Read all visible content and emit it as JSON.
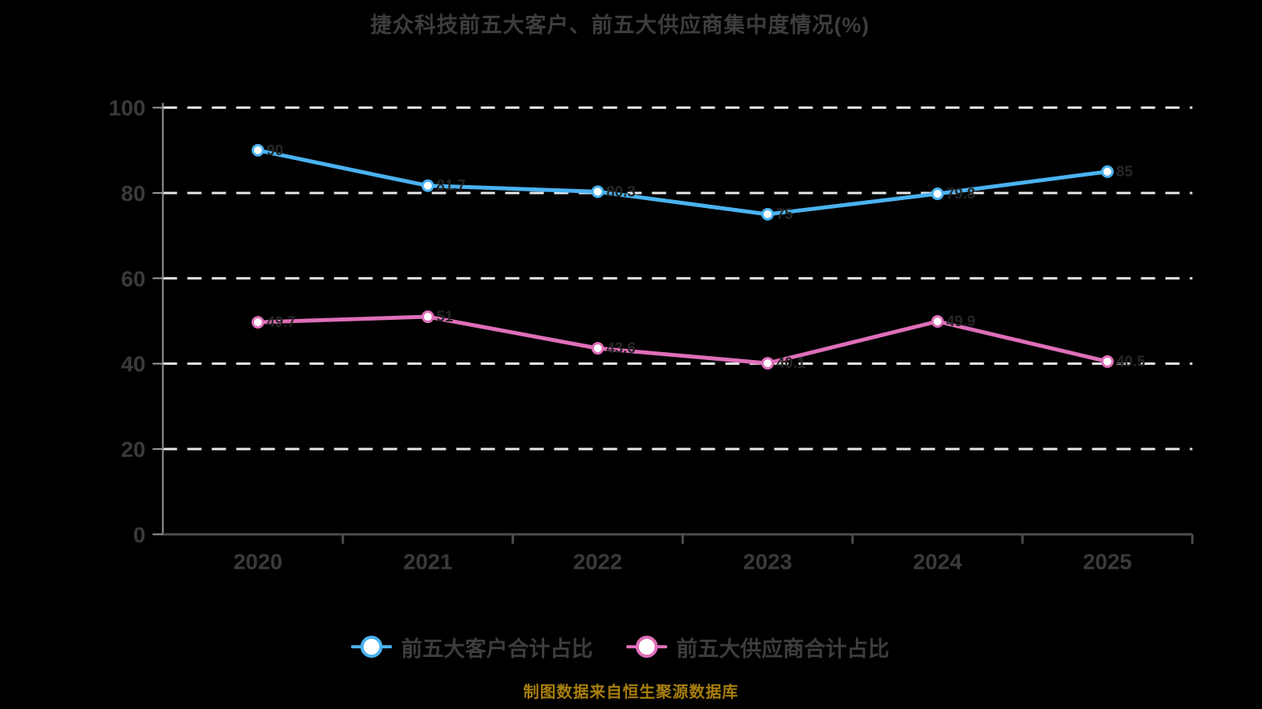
{
  "title": "捷众科技前五大客户、前五大供应商集中度情况(%)",
  "footer_note": "制图数据来自恒生聚源数据库",
  "chart_data": {
    "type": "line",
    "title": "捷众科技前五大客户、前五大供应商集中度情况(%)",
    "categories": [
      "2020",
      "2021",
      "2022",
      "2023",
      "2024",
      "2025"
    ],
    "series": [
      {
        "name": "前五大客户合计占比",
        "color": "#4ab2f0",
        "values": [
          90.0,
          81.7,
          80.3,
          75.0,
          79.8,
          85.0
        ]
      },
      {
        "name": "前五大供应商合计占比",
        "color": "#df6eb9",
        "values": [
          49.7,
          51.0,
          43.6,
          40.1,
          49.9,
          40.5
        ]
      }
    ],
    "xlabel": "",
    "ylabel": "",
    "ylim": [
      0,
      100
    ],
    "yticks": [
      0,
      20,
      40,
      60,
      80,
      100
    ],
    "grid": "horizontal-dashed",
    "legend_position": "bottom",
    "marker": "circle-white-fill"
  },
  "colors": {
    "background": "#000000",
    "title": "#3d3d3d",
    "axis_label": "#3a3a3a",
    "legend_text": "#3d3d3d",
    "grid": "#e8e8e8",
    "x_axis": "#4c4c4c",
    "y_axis": "#9a9a9a",
    "marker_fill": "#ffffff",
    "data_label": "#262626",
    "footer": "#a87f0d"
  }
}
